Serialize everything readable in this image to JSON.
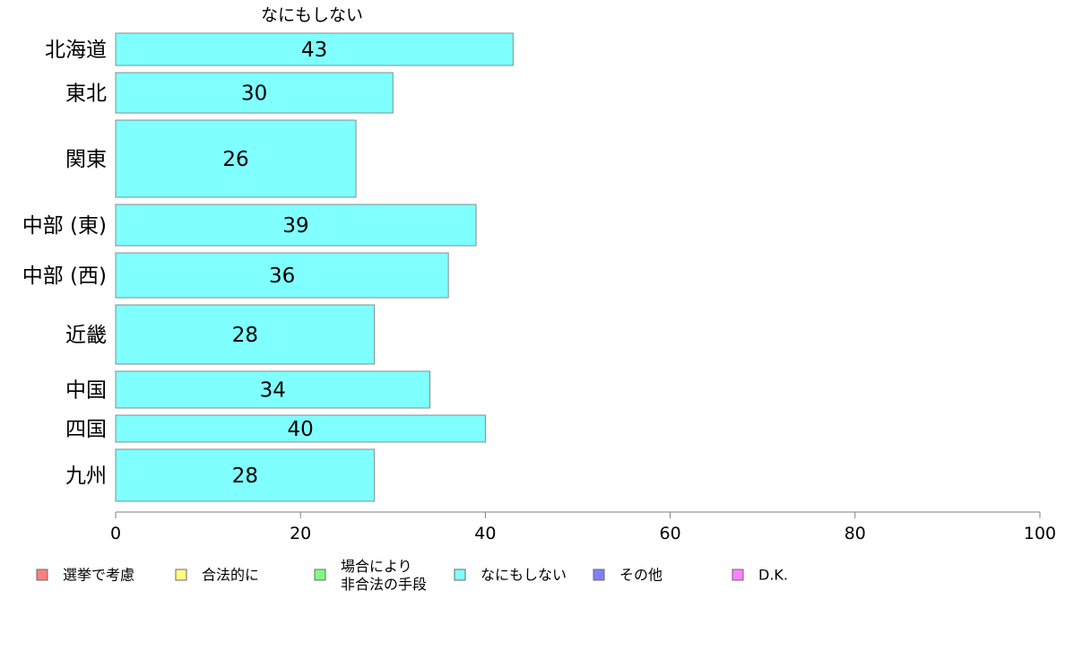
{
  "chart_data": {
    "type": "bar",
    "orientation": "horizontal",
    "title": "なにもしない",
    "categories": [
      "北海道",
      "東北",
      "関東",
      "中部 (東)",
      "中部 (西)",
      "近畿",
      "中国",
      "四国",
      "九州"
    ],
    "values": [
      43,
      30,
      26,
      39,
      36,
      28,
      34,
      40,
      28
    ],
    "value_labels": [
      "43",
      "30",
      "26",
      "39",
      "36",
      "28",
      "34",
      "40",
      "28"
    ],
    "xlim": [
      0,
      100
    ],
    "xticks": [
      0,
      20,
      40,
      60,
      80,
      100
    ],
    "xtick_labels": [
      "0",
      "20",
      "40",
      "60",
      "80",
      "100"
    ],
    "bar_color": "#80ffff",
    "grid": false,
    "legend_position": "bottom",
    "legend": [
      {
        "label": "選挙で考慮",
        "color": "#ff8080"
      },
      {
        "label": "合法的に",
        "color": "#ffff80"
      },
      {
        "label": "場合により\n非合法の手段",
        "color": "#80ff80"
      },
      {
        "label": "なにもしない",
        "color": "#80ffff"
      },
      {
        "label": "その他",
        "color": "#8080ff"
      },
      {
        "label": "D.K.",
        "color": "#ff80ff"
      }
    ]
  }
}
